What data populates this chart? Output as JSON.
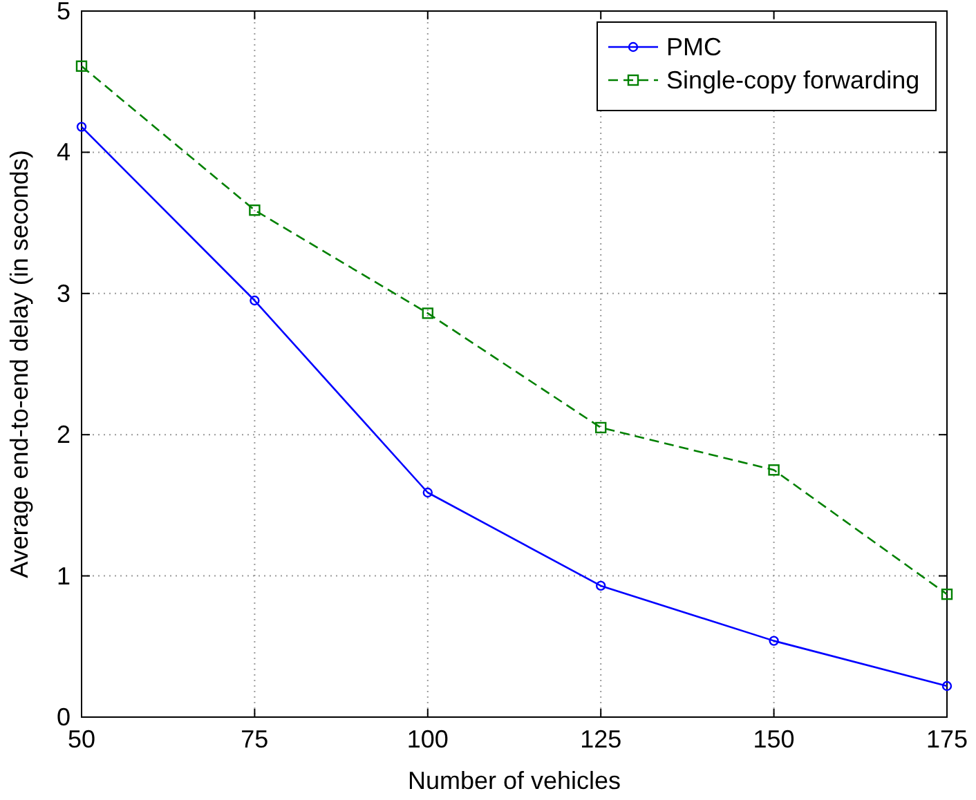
{
  "chart_data": {
    "type": "line",
    "xlabel": "Number of vehicles",
    "ylabel": "Average end-to-end delay (in seconds)",
    "x": [
      50,
      75,
      100,
      125,
      150,
      175
    ],
    "series": [
      {
        "name": "PMC",
        "color": "#0000ff",
        "marker": "circle",
        "line_style": "solid",
        "values": [
          4.18,
          2.95,
          1.59,
          0.93,
          0.54,
          0.22
        ]
      },
      {
        "name": "Single-copy forwarding",
        "color": "#008000",
        "marker": "square",
        "line_style": "dashed",
        "values": [
          4.61,
          3.59,
          2.86,
          2.05,
          1.75,
          0.87
        ]
      }
    ],
    "xlim": [
      50,
      175
    ],
    "xticks": [
      50,
      75,
      100,
      125,
      150,
      175
    ],
    "ylim": [
      0,
      5
    ],
    "yticks": [
      0,
      1,
      2,
      3,
      4,
      5
    ],
    "grid": true,
    "legend": "top right"
  }
}
